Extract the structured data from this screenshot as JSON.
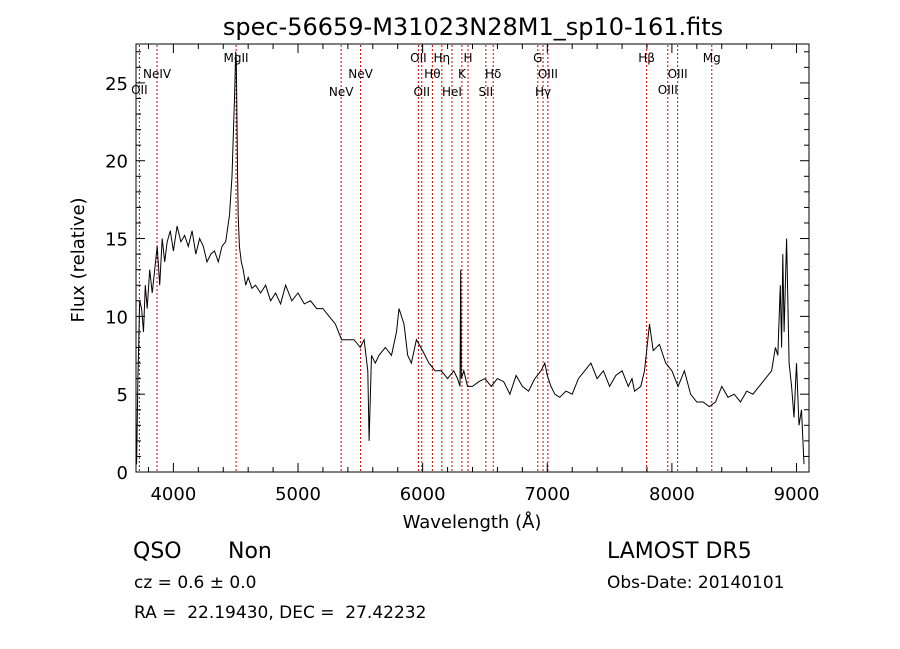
{
  "chart_data": {
    "type": "line",
    "title": "spec-56659-M31023N28M1_sp10-161.fits",
    "xlabel": "Wavelength (Å)",
    "ylabel": "Flux (relative)",
    "xlim": [
      3700,
      9100
    ],
    "ylim": [
      0,
      27.5
    ],
    "x_ticks": [
      4000,
      5000,
      6000,
      7000,
      8000,
      9000
    ],
    "y_ticks": [
      0,
      5,
      10,
      15,
      20,
      25
    ],
    "grid": false,
    "line_color": "#000000",
    "marker_color": "#cc0000",
    "series": [
      {
        "x": [
          3705,
          3715,
          3730,
          3745,
          3760,
          3775,
          3790,
          3810,
          3830,
          3850,
          3870,
          3890,
          3910,
          3930,
          3950,
          3975,
          4000,
          4030,
          4060,
          4090,
          4120,
          4150,
          4180,
          4210,
          4240,
          4270,
          4300,
          4330,
          4360,
          4390,
          4420,
          4450,
          4470,
          4490,
          4500,
          4505,
          4510,
          4515,
          4520,
          4530,
          4545,
          4560,
          4580,
          4600,
          4630,
          4660,
          4700,
          4740,
          4780,
          4820,
          4860,
          4900,
          4950,
          5000,
          5050,
          5100,
          5150,
          5200,
          5250,
          5300,
          5350,
          5400,
          5450,
          5500,
          5530,
          5560,
          5570,
          5590,
          5620,
          5650,
          5700,
          5750,
          5790,
          5810,
          5830,
          5850,
          5880,
          5910,
          5950,
          6000,
          6050,
          6100,
          6150,
          6200,
          6250,
          6280,
          6300,
          6305,
          6310,
          6330,
          6360,
          6400,
          6450,
          6500,
          6550,
          6600,
          6650,
          6700,
          6750,
          6800,
          6850,
          6900,
          6950,
          6980,
          7000,
          7030,
          7060,
          7100,
          7150,
          7200,
          7250,
          7300,
          7350,
          7400,
          7450,
          7500,
          7550,
          7600,
          7650,
          7680,
          7700,
          7750,
          7780,
          7800,
          7820,
          7850,
          7900,
          7950,
          8000,
          8050,
          8100,
          8150,
          8200,
          8250,
          8300,
          8350,
          8400,
          8450,
          8500,
          8550,
          8600,
          8650,
          8700,
          8750,
          8800,
          8830,
          8850,
          8870,
          8880,
          8890,
          8900,
          8920,
          8940,
          8960,
          8980,
          9000,
          9020,
          9040,
          9060
        ],
        "values": [
          0.5,
          6,
          11,
          10.5,
          9,
          12,
          10.5,
          13,
          11.5,
          13,
          14.5,
          12,
          15,
          13.5,
          14.8,
          15.5,
          14.2,
          15.8,
          14.8,
          15.2,
          14.5,
          15.5,
          14,
          15,
          14.5,
          13.5,
          14,
          14.2,
          13.5,
          14.5,
          14.8,
          16.5,
          19,
          24,
          27,
          26.5,
          23,
          19,
          16.5,
          14.5,
          13.5,
          13,
          12,
          12.5,
          11.8,
          12,
          11.5,
          12,
          11,
          11.5,
          10.8,
          12,
          11,
          11.5,
          10.8,
          11,
          10.5,
          10.5,
          10,
          9.5,
          8.5,
          8.5,
          8.5,
          8,
          8.5,
          6.5,
          2,
          7.5,
          7,
          7.5,
          8,
          7.5,
          9,
          10.5,
          10,
          9.5,
          7.5,
          7,
          8.5,
          7.8,
          7,
          6.5,
          6.5,
          6,
          6.5,
          6,
          5.5,
          13,
          6,
          6.5,
          5.5,
          5.5,
          5.8,
          6,
          5.5,
          6,
          5.8,
          5,
          6.2,
          5.5,
          5.2,
          6,
          6.5,
          7,
          6.2,
          5.5,
          5,
          4.8,
          5.2,
          5,
          6,
          6.5,
          7,
          6,
          6.5,
          5.5,
          6.2,
          6.5,
          5.5,
          6,
          5.2,
          5.5,
          6.5,
          8,
          9.5,
          7.8,
          8.2,
          7,
          6.5,
          5.5,
          6.5,
          5,
          4.5,
          4.5,
          4.2,
          4.5,
          5.5,
          4.8,
          5,
          4.5,
          5.2,
          5,
          5.5,
          6,
          6.5,
          8,
          7.5,
          12,
          8,
          14,
          9,
          15,
          7,
          5.5,
          3.5,
          7,
          3,
          4,
          0.5
        ]
      }
    ],
    "line_markers": [
      {
        "x": 3727,
        "label": "OII",
        "row": 3
      },
      {
        "x": 3869,
        "label": "NeIV",
        "row": 2
      },
      {
        "x": 4503,
        "label": "MgII",
        "row": 1
      },
      {
        "x": 5346,
        "label": "NeV",
        "row": 4
      },
      {
        "x": 5502,
        "label": "NeV",
        "row": 2
      },
      {
        "x": 5966,
        "label": "OII",
        "row": 1
      },
      {
        "x": 5993,
        "label": "OII",
        "row": 4
      },
      {
        "x": 6078,
        "label": "Hθ",
        "row": 2
      },
      {
        "x": 6154,
        "label": "Hη",
        "row": 1
      },
      {
        "x": 6235,
        "label": "HeI",
        "row": 4
      },
      {
        "x": 6315,
        "label": "K",
        "row": 2
      },
      {
        "x": 6364,
        "label": "H",
        "row": 1
      },
      {
        "x": 6507,
        "label": "SII",
        "row": 4
      },
      {
        "x": 6566,
        "label": "Hδ",
        "row": 2
      },
      {
        "x": 6924,
        "label": "G",
        "row": 1
      },
      {
        "x": 6966,
        "label": "Hγ",
        "row": 4
      },
      {
        "x": 7005,
        "label": "OIII",
        "row": 2
      },
      {
        "x": 7797,
        "label": "Hβ",
        "row": 1
      },
      {
        "x": 7967,
        "label": "OIII",
        "row": 3
      },
      {
        "x": 8046,
        "label": "OIII",
        "row": 2
      },
      {
        "x": 8320,
        "label": "Mg",
        "row": 1
      }
    ]
  },
  "info": {
    "class": "QSO",
    "subclass": "Non",
    "survey": "LAMOST DR5",
    "cz": "cz = 0.6 ± 0.0",
    "obs_date": "Obs-Date: 20140101",
    "coords": "RA =  22.19430, DEC =  27.42232"
  }
}
